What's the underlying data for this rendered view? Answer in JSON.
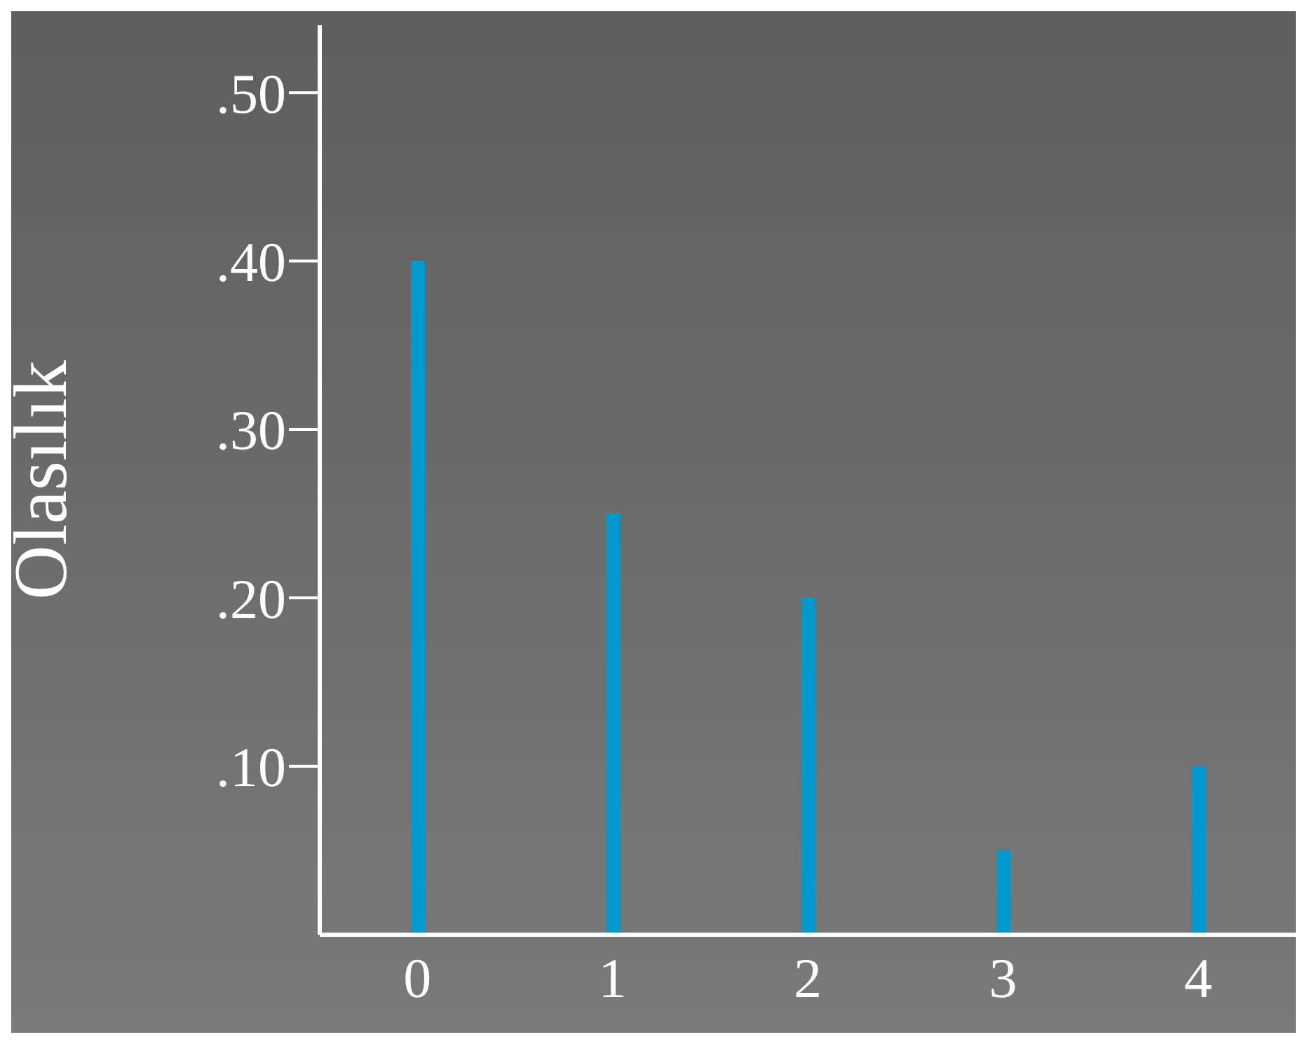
{
  "chart_data": {
    "type": "bar",
    "ylabel": "Olasılık",
    "categories": [
      "0",
      "1",
      "2",
      "3",
      "4"
    ],
    "values": [
      0.4,
      0.25,
      0.2,
      0.05,
      0.1
    ],
    "color": "#0099d0",
    "ylim": [
      0,
      0.54
    ],
    "yticks": [
      {
        "value": 0.1,
        "label": ".10"
      },
      {
        "value": 0.2,
        "label": ".20"
      },
      {
        "value": 0.3,
        "label": ".30"
      },
      {
        "value": 0.4,
        "label": ".40"
      },
      {
        "value": 0.5,
        "label": ".50"
      }
    ],
    "grid": false,
    "legend": false
  }
}
